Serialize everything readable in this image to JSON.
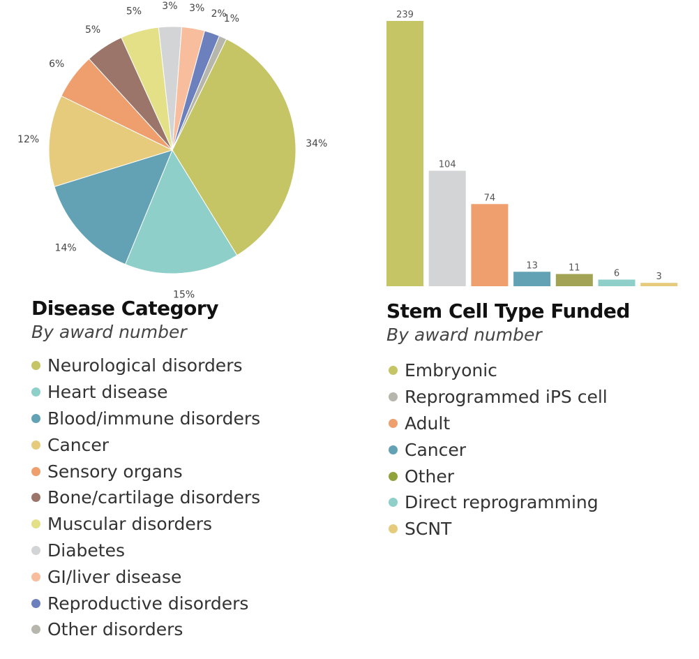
{
  "chart_data": [
    {
      "type": "pie",
      "title": "Disease Category",
      "subtitle": "By award number",
      "legend_position": "below",
      "categories": [
        "Neurological disorders",
        "Heart disease",
        "Blood/immune disorders",
        "Cancer",
        "Sensory organs",
        "Bone/cartilage disorders",
        "Muscular disorders",
        "Diabetes",
        "GI/liver disease",
        "Reproductive disorders",
        "Other disorders"
      ],
      "values": [
        34,
        15,
        14,
        12,
        6,
        5,
        5,
        3,
        3,
        2,
        1
      ],
      "labels": [
        "34%",
        "15%",
        "14%",
        "12%",
        "6%",
        "5%",
        "5%",
        "3%",
        "3%",
        "2%",
        "1%"
      ],
      "colors": [
        "#c5c565",
        "#8ecfc9",
        "#63a2b4",
        "#e6cb7c",
        "#ef9f6d",
        "#9b7569",
        "#e3e087",
        "#d3d4d6",
        "#f8bd9d",
        "#6c80bd",
        "#b6b6ac"
      ]
    },
    {
      "type": "bar",
      "title": "Stem Cell Type Funded",
      "subtitle": "By award number",
      "legend_position": "below",
      "categories": [
        "Embryonic",
        "Reprogrammed iPS cell",
        "Adult",
        "Cancer",
        "Other",
        "Direct reprogramming",
        "SCNT"
      ],
      "values": [
        239,
        104,
        74,
        13,
        11,
        6,
        3
      ],
      "labels": [
        "239",
        "104",
        "74",
        "13",
        "11",
        "6",
        "3"
      ],
      "ylim": [
        0,
        239
      ],
      "grid": false,
      "bar_colors": [
        "#c5c565",
        "#d3d4d6",
        "#ef9f6d",
        "#63a2b4",
        "#a3a356",
        "#8ecfc9",
        "#e6cb7c"
      ],
      "legend_colors": [
        "#c5c565",
        "#b6b6ac",
        "#ef9f6d",
        "#63a2b4",
        "#8fa33a",
        "#8ecfc9",
        "#e6cb7c"
      ]
    }
  ]
}
